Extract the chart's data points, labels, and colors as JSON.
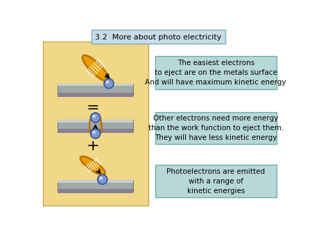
{
  "title": "3.2  More about photo electricity",
  "title_box_color": "#c8dde8",
  "title_box_edge": "#7aabbb",
  "bg_color": "#ffffff",
  "left_panel_bg": "#f0d888",
  "left_panel_edge": "#c8aa50",
  "text_box_bg": "#b8d8d8",
  "text_box_edge": "#6aacac",
  "metal_color": "#a0a8a8",
  "metal_edge": "#707878",
  "metal_shadow": "#888090",
  "photon_color": "#e8a000",
  "photon_edge": "#c07000",
  "electron_color_top": "#a0b0e0",
  "electron_color_bot": "#8098d0",
  "electron_edge": "#3050a0",
  "box1_text": "The easiest electrons\nto eject are on the metals surface\nAnd will have maximum kinetic energy",
  "box2_text": "Other electrons need more energy\nthan the work function to eject them.\nThey will have less kinetic energy",
  "box3_text": "Photoelectrons are emitted\nwith a range of\nkinetic energies",
  "equals_text": "=",
  "plus_text": "+",
  "fig_width": 4.5,
  "fig_height": 3.38
}
